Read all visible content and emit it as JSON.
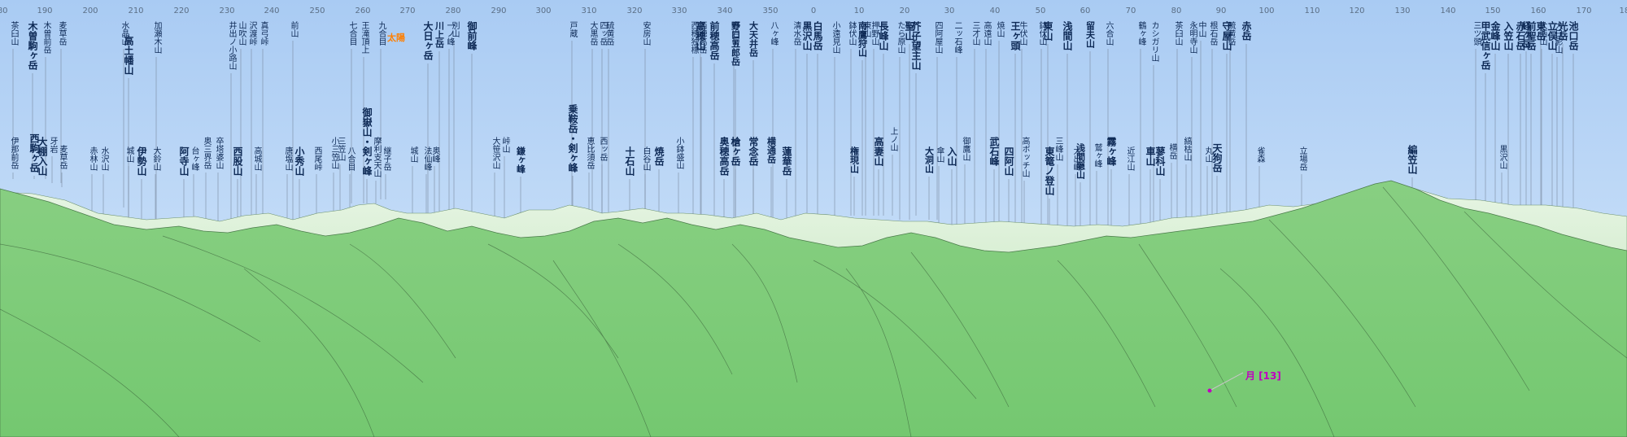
{
  "compass": {
    "ticks": [
      {
        "deg": "180"
      },
      {
        "deg": "190"
      },
      {
        "deg": "200"
      },
      {
        "deg": "210"
      },
      {
        "deg": "220"
      },
      {
        "deg": "230"
      },
      {
        "deg": "240"
      },
      {
        "deg": "250"
      },
      {
        "deg": "260"
      },
      {
        "deg": "270"
      },
      {
        "deg": "280"
      },
      {
        "deg": "290"
      },
      {
        "deg": "300"
      },
      {
        "deg": "310"
      },
      {
        "deg": "320"
      },
      {
        "deg": "330"
      },
      {
        "deg": "340"
      },
      {
        "deg": "350"
      },
      {
        "deg": "0"
      },
      {
        "deg": "10"
      },
      {
        "deg": "20"
      },
      {
        "deg": "30"
      },
      {
        "deg": "40"
      },
      {
        "deg": "50"
      },
      {
        "deg": "60"
      },
      {
        "deg": "70"
      },
      {
        "deg": "80"
      },
      {
        "deg": "90"
      },
      {
        "deg": "100"
      },
      {
        "deg": "110"
      },
      {
        "deg": "120"
      },
      {
        "deg": "130"
      },
      {
        "deg": "140"
      },
      {
        "deg": "150"
      },
      {
        "deg": "160"
      },
      {
        "deg": "170"
      },
      {
        "deg": "180"
      }
    ]
  },
  "peaks": [
    {
      "name": "茶臼山",
      "tier": "normal"
    },
    {
      "name": "伊那前岳",
      "tier": "normal"
    },
    {
      "name": "木曽駒ヶ岳",
      "tier": "strong"
    },
    {
      "name": "西駒ヶ岳",
      "tier": "strong"
    },
    {
      "name": "木曽前岳",
      "tier": "normal"
    },
    {
      "name": "大棚入山",
      "tier": "strong"
    },
    {
      "name": "麦草岳",
      "tier": "normal"
    },
    {
      "name": "牙岩",
      "tier": "normal"
    },
    {
      "name": "麦草岳",
      "tier": "normal"
    },
    {
      "name": "赤林山",
      "tier": "normal"
    },
    {
      "name": "水沢山",
      "tier": "normal"
    },
    {
      "name": "水晶山",
      "tier": "normal"
    },
    {
      "name": "高土幡山",
      "tier": "strong"
    },
    {
      "name": "城山",
      "tier": "normal"
    },
    {
      "name": "伊勢山",
      "tier": "strong"
    },
    {
      "name": "加瀬木山",
      "tier": "normal"
    },
    {
      "name": "大鈴山",
      "tier": "normal"
    },
    {
      "name": "阿寺山",
      "tier": "strong"
    },
    {
      "name": "台ヶ峰",
      "tier": "normal"
    },
    {
      "name": "奥三界岳",
      "tier": "normal"
    },
    {
      "name": "卒塔婆山",
      "tier": "normal"
    },
    {
      "name": "井出ノ小路山",
      "tier": "normal"
    },
    {
      "name": "山吹山",
      "tier": "normal"
    },
    {
      "name": "西股山",
      "tier": "strong"
    },
    {
      "name": "沢渡峠",
      "tier": "normal"
    },
    {
      "name": "高城山",
      "tier": "normal"
    },
    {
      "name": "真弓峠",
      "tier": "normal"
    },
    {
      "name": "唐塩山",
      "tier": "normal"
    },
    {
      "name": "前山",
      "tier": "normal"
    },
    {
      "name": "小秀山",
      "tier": "strong"
    },
    {
      "name": "西尾峠",
      "tier": "normal"
    },
    {
      "name": "小三笠山",
      "tier": "normal"
    },
    {
      "name": "三笠山",
      "tier": "normal"
    },
    {
      "name": "八合目",
      "tier": "normal"
    },
    {
      "name": "七合目",
      "tier": "normal"
    },
    {
      "name": "王滝頂上",
      "tier": "normal"
    },
    {
      "name": "御嶽山・剣ヶ峰",
      "tier": "strong"
    },
    {
      "name": "継子岳",
      "tier": "normal"
    },
    {
      "name": "九合目",
      "tier": "normal"
    },
    {
      "name": "摩利支天山",
      "tier": "normal"
    },
    {
      "name": "城山",
      "tier": "normal"
    },
    {
      "name": "法仙峰",
      "tier": "normal"
    },
    {
      "name": "奥峰",
      "tier": "normal"
    },
    {
      "name": "大日ヶ岳",
      "tier": "strong"
    },
    {
      "name": "川上岳",
      "tier": "medium"
    },
    {
      "name": "一ノ峰",
      "tier": "normal"
    },
    {
      "name": "別山",
      "tier": "normal"
    },
    {
      "name": "御前峰",
      "tier": "strong"
    },
    {
      "name": "大笹沢山",
      "tier": "normal"
    },
    {
      "name": "峠山",
      "tier": "normal"
    },
    {
      "name": "鎌ヶ峰",
      "tier": "medium"
    },
    {
      "name": "戸蔵",
      "tier": "normal"
    },
    {
      "name": "乗鞍岳・剣ヶ峰",
      "tier": "strong"
    },
    {
      "name": "恵比須岳",
      "tier": "normal"
    },
    {
      "name": "大黒岳",
      "tier": "normal"
    },
    {
      "name": "四ッ岳",
      "tier": "normal"
    },
    {
      "name": "硫黄岳",
      "tier": "normal"
    },
    {
      "name": "西ッ岳",
      "tier": "normal"
    },
    {
      "name": "十石山",
      "tier": "strong"
    },
    {
      "name": "白谷山",
      "tier": "normal"
    },
    {
      "name": "安房山",
      "tier": "normal"
    },
    {
      "name": "焼岳",
      "tier": "strong"
    },
    {
      "name": "小鉢盛山",
      "tier": "normal"
    },
    {
      "name": "西穂独標",
      "tier": "normal"
    },
    {
      "name": "西穂高岳",
      "tier": "normal"
    },
    {
      "name": "高穂山",
      "tier": "strong"
    },
    {
      "name": "奥穂高岳",
      "tier": "strong"
    },
    {
      "name": "前穂高岳",
      "tier": "strong"
    },
    {
      "name": "槍ヶ岳",
      "tier": "strong"
    },
    {
      "name": "野口五郎岳",
      "tier": "medium"
    },
    {
      "name": "赤岩岳",
      "tier": "normal"
    },
    {
      "name": "大天井岳",
      "tier": "medium"
    },
    {
      "name": "常念岳",
      "tier": "strong"
    },
    {
      "name": "横通岳",
      "tier": "medium"
    },
    {
      "name": "八ヶ峰",
      "tier": "normal"
    },
    {
      "name": "蓮華岳",
      "tier": "strong"
    },
    {
      "name": "清水岳",
      "tier": "normal"
    },
    {
      "name": "黒沢山",
      "tier": "strong"
    },
    {
      "name": "白馬岳",
      "tier": "strong"
    },
    {
      "name": "小遠見山",
      "tier": "normal"
    },
    {
      "name": "権現山",
      "tier": "medium"
    },
    {
      "name": "鉢伏山",
      "tier": "normal"
    },
    {
      "name": "南鷹狩山",
      "tier": "medium"
    },
    {
      "name": "押野山",
      "tier": "normal"
    },
    {
      "name": "東山",
      "tier": "normal"
    },
    {
      "name": "高妻山",
      "tier": "strong"
    },
    {
      "name": "長峰山",
      "tier": "strong"
    },
    {
      "name": "上ノ山",
      "tier": "normal"
    },
    {
      "name": "たら原山",
      "tier": "normal"
    },
    {
      "name": "聖山",
      "tier": "strong"
    },
    {
      "name": "芥子望主山",
      "tier": "strong"
    },
    {
      "name": "大洞山",
      "tier": "medium"
    },
    {
      "name": "四阿屋山",
      "tier": "normal"
    },
    {
      "name": "傘山",
      "tier": "normal"
    },
    {
      "name": "入山",
      "tier": "strong"
    },
    {
      "name": "二ッ石峰",
      "tier": "normal"
    },
    {
      "name": "御鷹山",
      "tier": "normal"
    },
    {
      "name": "三才山",
      "tier": "normal"
    },
    {
      "name": "高遠山",
      "tier": "normal"
    },
    {
      "name": "武石峰",
      "tier": "strong"
    },
    {
      "name": "焼山",
      "tier": "normal"
    },
    {
      "name": "四阿山",
      "tier": "strong"
    },
    {
      "name": "王ヶ頭",
      "tier": "strong"
    },
    {
      "name": "牛伏山",
      "tier": "normal"
    },
    {
      "name": "高ボッチ山",
      "tier": "normal"
    },
    {
      "name": "鉢伏山",
      "tier": "normal"
    },
    {
      "name": "東山",
      "tier": "strong"
    },
    {
      "name": "東篭ノ登山",
      "tier": "strong"
    },
    {
      "name": "三峰山",
      "tier": "normal"
    },
    {
      "name": "浅間山",
      "tier": "strong"
    },
    {
      "name": "大出峰",
      "tier": "normal"
    },
    {
      "name": "浅間隠山",
      "tier": "medium"
    },
    {
      "name": "留夫山",
      "tier": "medium"
    },
    {
      "name": "鷲ヶ峰",
      "tier": "normal"
    },
    {
      "name": "六合山",
      "tier": "normal"
    },
    {
      "name": "霧ヶ峰",
      "tier": "strong"
    },
    {
      "name": "近江山",
      "tier": "normal"
    },
    {
      "name": "鶴ヶ峰",
      "tier": "normal"
    },
    {
      "name": "車山",
      "tier": "strong"
    },
    {
      "name": "カシガリ山",
      "tier": "normal"
    },
    {
      "name": "蓼科山",
      "tier": "strong"
    },
    {
      "name": "横岳",
      "tier": "normal"
    },
    {
      "name": "茶臼山",
      "tier": "normal"
    },
    {
      "name": "縞枯山",
      "tier": "normal"
    },
    {
      "name": "永明寺山",
      "tier": "normal"
    },
    {
      "name": "中山",
      "tier": "normal"
    },
    {
      "name": "丸山",
      "tier": "normal"
    },
    {
      "name": "天狗岳",
      "tier": "strong"
    },
    {
      "name": "根石岳",
      "tier": "normal"
    },
    {
      "name": "守屋山",
      "tier": "strong"
    },
    {
      "name": "硫黄岳",
      "tier": "normal"
    },
    {
      "name": "赤岳",
      "tier": "strong"
    },
    {
      "name": "雀森",
      "tier": "normal"
    },
    {
      "name": "立場岳",
      "tier": "normal"
    },
    {
      "name": "編笠山",
      "tier": "strong"
    },
    {
      "name": "三ツ頭",
      "tier": "normal"
    },
    {
      "name": "甲武信ヶ岳",
      "tier": "strong"
    },
    {
      "name": "金峰山",
      "tier": "strong"
    },
    {
      "name": "入笠山",
      "tier": "strong"
    },
    {
      "name": "黒沢山",
      "tier": "normal"
    },
    {
      "name": "経ヶ岳",
      "tier": "medium"
    },
    {
      "name": "東岳",
      "tier": "strong"
    },
    {
      "name": "大日影山",
      "tier": "normal"
    },
    {
      "name": "赤石岳",
      "tier": "strong"
    },
    {
      "name": "前聖岳",
      "tier": "strong"
    },
    {
      "name": "大西山",
      "tier": "normal"
    },
    {
      "name": "立俣山",
      "tier": "strong"
    },
    {
      "name": "光岳",
      "tier": "strong"
    },
    {
      "name": "池口岳",
      "tier": "strong"
    }
  ],
  "sun_label": "太陽",
  "moon_label": "月 [13]",
  "colors": {
    "sky_top": "#a7c9f2",
    "sky_bottom": "#d7e8fb",
    "ridge_far": "#c8e6c0",
    "ridge_near": "#6fc46c",
    "leader_line": "#7b8aa0",
    "moon": "#c000c0",
    "sun": "#ff7f00"
  }
}
